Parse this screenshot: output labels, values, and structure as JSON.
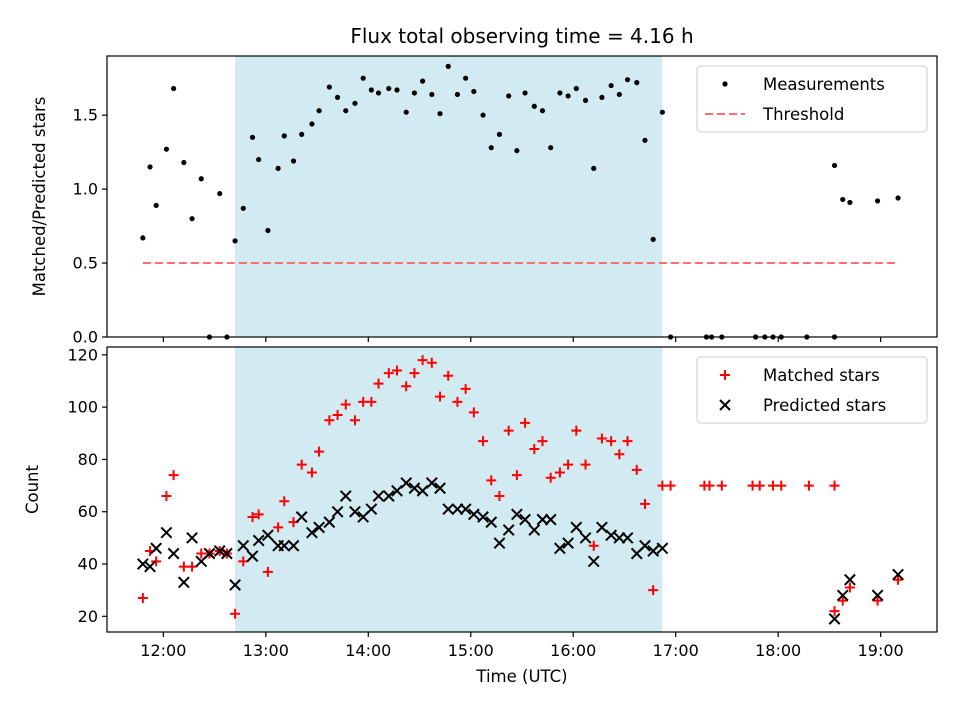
{
  "figure": {
    "title": "Flux total observing time = 4.16 h"
  },
  "colors": {
    "shade": "#add8e6",
    "measurement": "#000000",
    "threshold": "#ff6e6e",
    "matched": "#ff0000",
    "predicted": "#000000"
  },
  "chart_data": [
    {
      "type": "scatter",
      "ylabel": "Matched/Predicted stars",
      "ylim": [
        0,
        1.9
      ],
      "xlim": [
        11.45,
        19.55
      ],
      "yticks": [
        0.0,
        0.5,
        1.0,
        1.5
      ],
      "ytick_labels": [
        "0.0",
        "0.5",
        "1.0",
        "1.5"
      ],
      "shaded_span": [
        12.7,
        16.87
      ],
      "legend": {
        "position": "top-right",
        "entries": [
          "Measurements",
          "Threshold"
        ]
      },
      "series": [
        {
          "name": "Measurements",
          "marker": "dot",
          "points": [
            [
              11.8,
              0.67
            ],
            [
              11.87,
              1.15
            ],
            [
              11.93,
              0.89
            ],
            [
              12.03,
              1.27
            ],
            [
              12.1,
              1.68
            ],
            [
              12.2,
              1.18
            ],
            [
              12.28,
              0.8
            ],
            [
              12.37,
              1.07
            ],
            [
              12.45,
              0.0
            ],
            [
              12.55,
              0.97
            ],
            [
              12.62,
              0.0
            ],
            [
              12.7,
              0.65
            ],
            [
              12.78,
              0.87
            ],
            [
              12.87,
              1.35
            ],
            [
              12.93,
              1.2
            ],
            [
              13.02,
              0.72
            ],
            [
              13.12,
              1.14
            ],
            [
              13.18,
              1.36
            ],
            [
              13.27,
              1.19
            ],
            [
              13.35,
              1.37
            ],
            [
              13.45,
              1.44
            ],
            [
              13.52,
              1.53
            ],
            [
              13.62,
              1.69
            ],
            [
              13.7,
              1.62
            ],
            [
              13.78,
              1.53
            ],
            [
              13.87,
              1.58
            ],
            [
              13.95,
              1.75
            ],
            [
              14.03,
              1.67
            ],
            [
              14.1,
              1.65
            ],
            [
              14.2,
              1.68
            ],
            [
              14.28,
              1.67
            ],
            [
              14.37,
              1.52
            ],
            [
              14.45,
              1.65
            ],
            [
              14.53,
              1.73
            ],
            [
              14.62,
              1.64
            ],
            [
              14.7,
              1.51
            ],
            [
              14.78,
              1.83
            ],
            [
              14.87,
              1.64
            ],
            [
              14.95,
              1.75
            ],
            [
              15.03,
              1.66
            ],
            [
              15.12,
              1.5
            ],
            [
              15.2,
              1.28
            ],
            [
              15.28,
              1.37
            ],
            [
              15.37,
              1.63
            ],
            [
              15.45,
              1.26
            ],
            [
              15.53,
              1.65
            ],
            [
              15.62,
              1.56
            ],
            [
              15.7,
              1.53
            ],
            [
              15.78,
              1.28
            ],
            [
              15.87,
              1.65
            ],
            [
              15.95,
              1.63
            ],
            [
              16.03,
              1.68
            ],
            [
              16.12,
              1.6
            ],
            [
              16.2,
              1.14
            ],
            [
              16.28,
              1.62
            ],
            [
              16.37,
              1.7
            ],
            [
              16.45,
              1.64
            ],
            [
              16.53,
              1.74
            ],
            [
              16.62,
              1.72
            ],
            [
              16.7,
              1.33
            ],
            [
              16.78,
              0.66
            ],
            [
              16.87,
              1.52
            ],
            [
              16.95,
              0.0
            ],
            [
              17.3,
              0.0
            ],
            [
              17.35,
              0.0
            ],
            [
              17.45,
              0.0
            ],
            [
              17.78,
              0.0
            ],
            [
              17.87,
              0.0
            ],
            [
              17.95,
              0.0
            ],
            [
              18.03,
              0.0
            ],
            [
              18.28,
              0.0
            ],
            [
              18.55,
              0.0
            ],
            [
              18.55,
              1.16
            ],
            [
              18.63,
              0.93
            ],
            [
              18.7,
              0.91
            ],
            [
              18.97,
              0.92
            ],
            [
              19.17,
              0.94
            ]
          ]
        },
        {
          "name": "Threshold",
          "marker": "dashed-line",
          "points": [
            [
              11.8,
              0.5
            ],
            [
              19.17,
              0.5
            ]
          ]
        }
      ]
    },
    {
      "type": "scatter",
      "xlabel": "Time (UTC)",
      "ylabel": "Count",
      "ylim": [
        14,
        123
      ],
      "xlim": [
        11.45,
        19.55
      ],
      "yticks": [
        20,
        40,
        60,
        80,
        100,
        120
      ],
      "ytick_labels": [
        "20",
        "40",
        "60",
        "80",
        "100",
        "120"
      ],
      "xticks": [
        12,
        13,
        14,
        15,
        16,
        17,
        18,
        19
      ],
      "xtick_labels": [
        "12:00",
        "13:00",
        "14:00",
        "15:00",
        "16:00",
        "17:00",
        "18:00",
        "19:00"
      ],
      "shaded_span": [
        12.7,
        16.87
      ],
      "legend": {
        "position": "top-right",
        "entries": [
          "Matched stars",
          "Predicted stars"
        ]
      },
      "series": [
        {
          "name": "Matched stars",
          "marker": "plus",
          "points": [
            [
              11.8,
              27
            ],
            [
              11.87,
              45
            ],
            [
              11.93,
              41
            ],
            [
              12.03,
              66
            ],
            [
              12.1,
              74
            ],
            [
              12.2,
              39
            ],
            [
              12.28,
              39
            ],
            [
              12.37,
              44
            ],
            [
              12.45,
              44
            ],
            [
              12.55,
              45
            ],
            [
              12.62,
              44
            ],
            [
              12.7,
              21
            ],
            [
              12.78,
              41
            ],
            [
              12.87,
              58
            ],
            [
              12.93,
              59
            ],
            [
              13.02,
              37
            ],
            [
              13.12,
              54
            ],
            [
              13.18,
              64
            ],
            [
              13.27,
              56
            ],
            [
              13.35,
              78
            ],
            [
              13.45,
              75
            ],
            [
              13.52,
              83
            ],
            [
              13.62,
              95
            ],
            [
              13.7,
              97
            ],
            [
              13.78,
              101
            ],
            [
              13.87,
              95
            ],
            [
              13.95,
              102
            ],
            [
              14.03,
              102
            ],
            [
              14.1,
              109
            ],
            [
              14.2,
              113
            ],
            [
              14.28,
              114
            ],
            [
              14.37,
              108
            ],
            [
              14.45,
              113
            ],
            [
              14.53,
              118
            ],
            [
              14.62,
              117
            ],
            [
              14.7,
              104
            ],
            [
              14.78,
              112
            ],
            [
              14.87,
              102
            ],
            [
              14.95,
              107
            ],
            [
              15.03,
              98
            ],
            [
              15.12,
              87
            ],
            [
              15.2,
              72
            ],
            [
              15.28,
              66
            ],
            [
              15.37,
              91
            ],
            [
              15.45,
              74
            ],
            [
              15.53,
              94
            ],
            [
              15.62,
              84
            ],
            [
              15.7,
              87
            ],
            [
              15.78,
              73
            ],
            [
              15.87,
              75
            ],
            [
              15.95,
              78
            ],
            [
              16.03,
              91
            ],
            [
              16.12,
              78
            ],
            [
              16.2,
              47
            ],
            [
              16.28,
              88
            ],
            [
              16.37,
              87
            ],
            [
              16.45,
              82
            ],
            [
              16.53,
              87
            ],
            [
              16.62,
              76
            ],
            [
              16.7,
              63
            ],
            [
              16.78,
              30
            ],
            [
              16.87,
              70
            ],
            [
              16.95,
              70
            ],
            [
              17.28,
              70
            ],
            [
              17.33,
              70
            ],
            [
              17.45,
              70
            ],
            [
              17.75,
              70
            ],
            [
              17.82,
              70
            ],
            [
              17.95,
              70
            ],
            [
              18.03,
              70
            ],
            [
              18.3,
              70
            ],
            [
              18.55,
              70
            ],
            [
              18.55,
              22
            ],
            [
              18.63,
              26
            ],
            [
              18.7,
              31
            ],
            [
              18.97,
              26
            ],
            [
              19.17,
              34
            ]
          ]
        },
        {
          "name": "Predicted stars",
          "marker": "x",
          "points": [
            [
              11.8,
              40
            ],
            [
              11.87,
              39
            ],
            [
              11.93,
              46
            ],
            [
              12.03,
              52
            ],
            [
              12.1,
              44
            ],
            [
              12.2,
              33
            ],
            [
              12.28,
              50
            ],
            [
              12.37,
              41
            ],
            [
              12.45,
              44
            ],
            [
              12.55,
              45
            ],
            [
              12.62,
              44
            ],
            [
              12.7,
              32
            ],
            [
              12.78,
              47
            ],
            [
              12.87,
              43
            ],
            [
              12.93,
              49
            ],
            [
              13.02,
              51
            ],
            [
              13.12,
              47
            ],
            [
              13.18,
              47
            ],
            [
              13.27,
              47
            ],
            [
              13.35,
              58
            ],
            [
              13.45,
              52
            ],
            [
              13.52,
              54
            ],
            [
              13.62,
              56
            ],
            [
              13.7,
              60
            ],
            [
              13.78,
              66
            ],
            [
              13.87,
              60
            ],
            [
              13.95,
              58
            ],
            [
              14.03,
              61
            ],
            [
              14.1,
              66
            ],
            [
              14.2,
              66
            ],
            [
              14.28,
              68
            ],
            [
              14.37,
              71
            ],
            [
              14.45,
              69
            ],
            [
              14.53,
              68
            ],
            [
              14.62,
              71
            ],
            [
              14.7,
              69
            ],
            [
              14.78,
              61
            ],
            [
              14.87,
              61
            ],
            [
              14.95,
              61
            ],
            [
              15.03,
              59
            ],
            [
              15.12,
              58
            ],
            [
              15.2,
              56
            ],
            [
              15.28,
              48
            ],
            [
              15.37,
              53
            ],
            [
              15.45,
              59
            ],
            [
              15.53,
              57
            ],
            [
              15.62,
              53
            ],
            [
              15.7,
              57
            ],
            [
              15.78,
              57
            ],
            [
              15.87,
              46
            ],
            [
              15.95,
              48
            ],
            [
              16.03,
              54
            ],
            [
              16.12,
              50
            ],
            [
              16.2,
              41
            ],
            [
              16.28,
              54
            ],
            [
              16.37,
              51
            ],
            [
              16.45,
              50
            ],
            [
              16.53,
              50
            ],
            [
              16.62,
              44
            ],
            [
              16.7,
              47
            ],
            [
              16.78,
              45
            ],
            [
              16.87,
              46
            ],
            [
              18.55,
              19
            ],
            [
              18.63,
              28
            ],
            [
              18.7,
              34
            ],
            [
              18.97,
              28
            ],
            [
              19.17,
              36
            ]
          ]
        }
      ]
    }
  ]
}
